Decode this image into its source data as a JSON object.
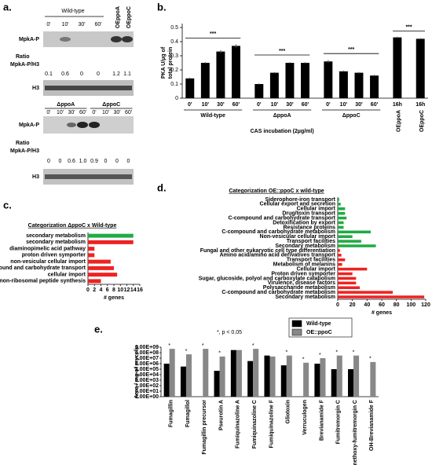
{
  "panel_labels": [
    "a.",
    "b.",
    "c.",
    "d.",
    "e."
  ],
  "blots": {
    "top": {
      "groups": [
        "Wild-type"
      ],
      "oe": [
        "OEppoA",
        "OEppoC"
      ],
      "times": [
        "0'",
        "10'",
        "30'",
        "60'"
      ],
      "rows": [
        "MpkA-P",
        "H3"
      ],
      "ratio_label": [
        "Ratio",
        "MpkA-P/H3"
      ],
      "ratios": [
        "0.1",
        "0.6",
        "0",
        "0",
        "1.2",
        "1.1"
      ]
    },
    "bottom": {
      "groups": [
        "ΔppoA",
        "ΔppoC"
      ],
      "times": [
        "0'",
        "10'",
        "30'",
        "60'",
        "0'",
        "10'",
        "30'",
        "60'"
      ],
      "rows": [
        "MpkA-P",
        "H3"
      ],
      "ratio_label": [
        "Ratio",
        "MpkA-P/H3"
      ],
      "ratios": [
        "0",
        "0",
        "0.6",
        "1.0",
        "0.9",
        "0",
        "0",
        "0"
      ]
    }
  },
  "chart_data": [
    {
      "type": "bar",
      "y_label": [
        "PKA U/µg of",
        "total protein"
      ],
      "x_label": "CAS incubation (2µg/ml)",
      "color": "#000000",
      "ylim": [
        0,
        0.5
      ],
      "yticks": [
        0,
        0.1,
        0.2,
        0.3,
        0.4,
        0.5
      ],
      "annotation": "***",
      "groups": [
        {
          "name": "Wild-type",
          "categories": [
            "0'",
            "10'",
            "30'",
            "60'"
          ],
          "values": [
            0.14,
            0.25,
            0.33,
            0.37
          ],
          "errors": [
            0.005,
            0.005,
            0.01,
            0.01
          ],
          "significance": "***"
        },
        {
          "name": "ΔppoA",
          "categories": [
            "0'",
            "10'",
            "30'",
            "60'"
          ],
          "values": [
            0.1,
            0.18,
            0.25,
            0.25
          ],
          "errors": [
            0.005,
            0.005,
            0.005,
            0.005
          ],
          "significance": "***"
        },
        {
          "name": "ΔppoC",
          "categories": [
            "0'",
            "10'",
            "30'",
            "60'"
          ],
          "values": [
            0.26,
            0.19,
            0.18,
            0.16
          ],
          "errors": [
            0.01,
            0.005,
            0.005,
            0.005
          ],
          "significance": "***"
        },
        {
          "name": "OEppoA",
          "categories": [
            "16h"
          ],
          "values": [
            0.43
          ],
          "errors": [
            0.005
          ]
        },
        {
          "name": "OEppoC",
          "categories": [
            "16h"
          ],
          "values": [
            0.42
          ],
          "errors": [
            0.005
          ]
        }
      ]
    },
    {
      "type": "hbar",
      "title": "Categorization ΔppoC x Wild-type",
      "x_label": "# genes",
      "categories": [
        "secondary metabolism",
        "secondary metabolism",
        "diaminopimelic acid pathway",
        "proton driven symporter",
        "non-vesicular cellular import",
        "C-compound and carbohydrate transport",
        "cellular import",
        "non-ribosomal peptide synthesis"
      ],
      "values": [
        14,
        14,
        2,
        2,
        7,
        8,
        9,
        4
      ],
      "colors": [
        "#22aa44",
        "#ee2222",
        "#ee2222",
        "#ee2222",
        "#ee2222",
        "#ee2222",
        "#ee2222",
        "#ee2222"
      ],
      "xlim": [
        0,
        16
      ],
      "xticks": [
        0,
        2,
        4,
        6,
        8,
        10,
        12,
        14,
        16
      ]
    },
    {
      "type": "hbar",
      "title": "Categorization OE::ppoC x wild-type",
      "x_label": "# genes",
      "categories": [
        "Siderophore-iron transport",
        "Cellular export and secretion",
        "Cellular import",
        "Drug/toxin transport",
        "C-compound and carbohydrate transport",
        "Detoxification by export",
        "Resistance proteins",
        "C-compound and carbohydrate metabolism",
        "Non-vesicular cellular import",
        "Transport facilities",
        "Secondary metabolism",
        "Fungal and other eukaryotic cell type differentiation",
        "Amino acid/amino acid derivatives transport",
        "Transport facilities",
        "Metabolism of melanins",
        "Cellular import",
        "Proton driven symporter",
        "Sugar, glucoside, polyol and carboxylate catabolism",
        "Virulence, disease factors",
        "Polysaccharide metabolism",
        "C-compound and carbohydrate metabolism",
        "Secondary metabolism"
      ],
      "values": [
        2,
        4,
        10,
        10,
        12,
        8,
        8,
        45,
        20,
        32,
        52,
        3,
        5,
        10,
        6,
        40,
        20,
        25,
        25,
        30,
        75,
        118
      ],
      "colors": [
        "#22aa44",
        "#22aa44",
        "#22aa44",
        "#22aa44",
        "#22aa44",
        "#22aa44",
        "#22aa44",
        "#22aa44",
        "#22aa44",
        "#22aa44",
        "#22aa44",
        "#ee2222",
        "#ee2222",
        "#ee2222",
        "#ee2222",
        "#ee2222",
        "#ee2222",
        "#ee2222",
        "#ee2222",
        "#ee2222",
        "#ee2222",
        "#ee2222"
      ],
      "xlim": [
        0,
        120
      ],
      "xticks": [
        0,
        20,
        40,
        60,
        80,
        100,
        120
      ]
    },
    {
      "type": "logbar",
      "y_label": "Area / mg of mycelia",
      "annotation": "*, p < 0.05",
      "log_y": true,
      "categories": [
        "Fumagillin",
        "Fumagillol",
        "Fumagillin precursor",
        "Pseurotin A",
        "Fumiquinazoline A",
        "Fumiquinazoline C",
        "Fumiquinazoline F",
        "Gliotoxin",
        "Verruculogen",
        "Brevianamide F",
        "Fumitremorgin C",
        "Demethoxy-fumitremorgin C",
        "OH-Brevianamide F"
      ],
      "significance": [
        "*",
        "*",
        "*",
        "*",
        null,
        "*",
        null,
        "*",
        "*",
        "*",
        "*",
        "*",
        "*"
      ],
      "series": [
        {
          "name": "Wild-type",
          "color": "#000000",
          "values": [
            1000000,
            300000,
            null,
            50000,
            300000000,
            3000000,
            30000000,
            500000,
            null,
            1000000,
            100000,
            100000,
            null
          ]
        },
        {
          "name": "OE::ppoC",
          "color": "#888888",
          "values": [
            500000000,
            50000000,
            500000000,
            20000000,
            300000000,
            500000000,
            20000000,
            30000000,
            1500000,
            10000000,
            30000000,
            30000000,
            2000000
          ]
        }
      ],
      "ylim": [
        1,
        1000000000
      ],
      "yticks": [
        {
          "value": 1,
          "label": "1.00E+00"
        },
        {
          "value": 10,
          "label": "1.00E+01"
        },
        {
          "value": 100,
          "label": "1.00E+02"
        },
        {
          "value": 1000,
          "label": "1.00E+03"
        },
        {
          "value": 10000,
          "label": "1.00E+04"
        },
        {
          "value": 100000,
          "label": "1.00E+05"
        },
        {
          "value": 1000000,
          "label": "1.00E+06"
        },
        {
          "value": 10000000,
          "label": "1.00E+07"
        },
        {
          "value": 100000000,
          "label": "1.00E+08"
        },
        {
          "value": 1000000000,
          "label": "1.00E+09"
        }
      ]
    }
  ]
}
